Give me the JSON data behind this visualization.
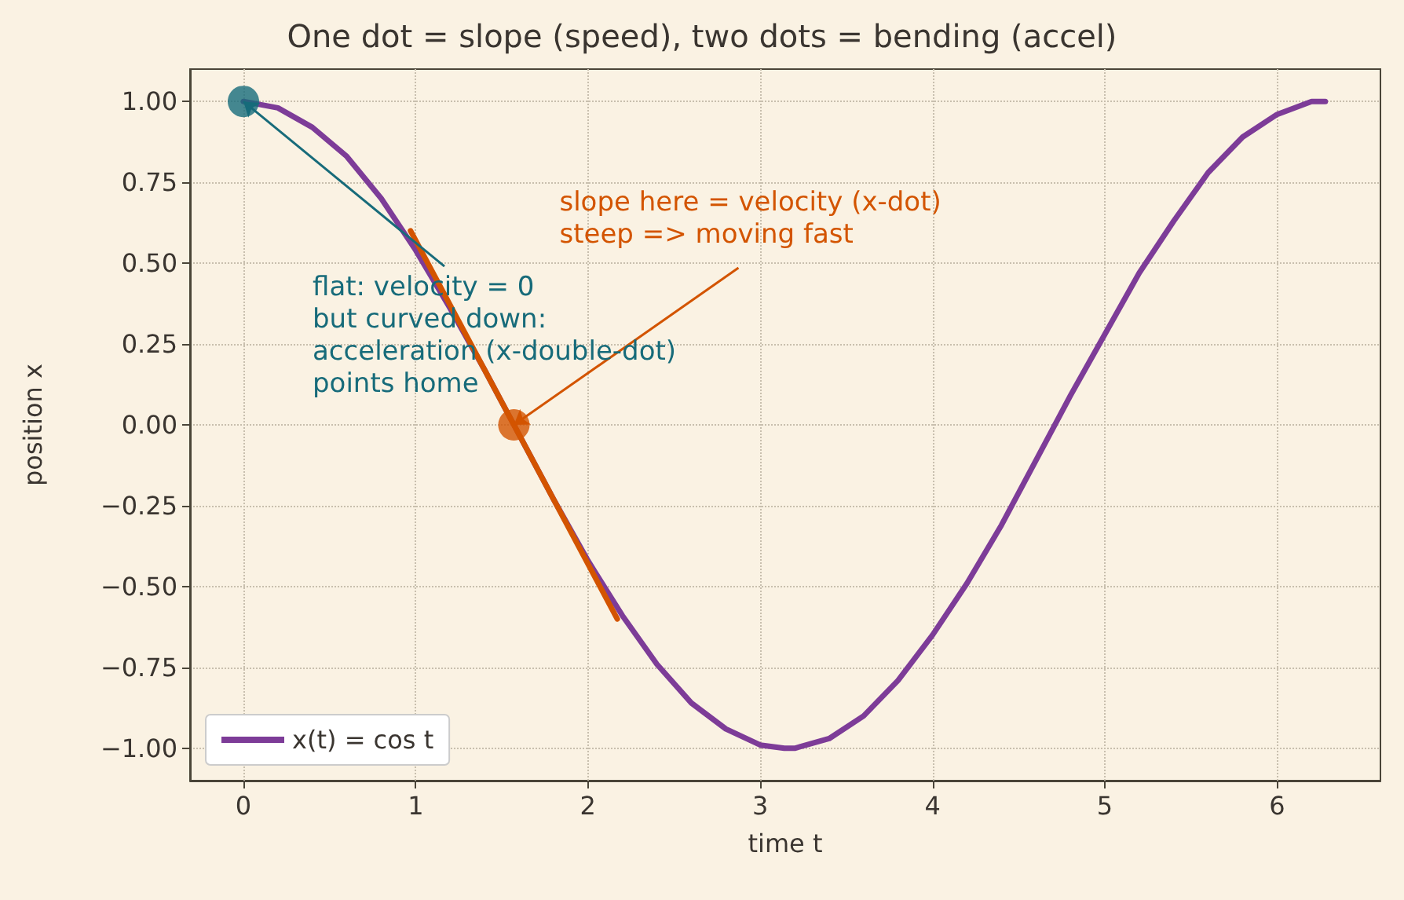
{
  "chart_data": {
    "type": "line",
    "title": "One dot = slope (speed), two dots = bending (accel)",
    "xlabel": "time t",
    "ylabel": "position x",
    "xlim": [
      -0.31,
      6.6
    ],
    "xticks": [
      0,
      1,
      2,
      3,
      4,
      5,
      6
    ],
    "ylim": [
      -1.1,
      1.1
    ],
    "yticks": [
      {
        "value": -1,
        "label": "−1.00"
      },
      {
        "value": -0.75,
        "label": "−0.75"
      },
      {
        "value": -0.5,
        "label": "−0.50"
      },
      {
        "value": -0.25,
        "label": "−0.25"
      },
      {
        "value": 0,
        "label": "0.00"
      },
      {
        "value": 0.25,
        "label": "0.25"
      },
      {
        "value": 0.5,
        "label": "0.50"
      },
      {
        "value": 0.75,
        "label": "0.75"
      },
      {
        "value": 1,
        "label": "1.00"
      }
    ],
    "grid": true,
    "legend": "bottom left",
    "marker": "none",
    "line_style": "solid",
    "series": [
      {
        "name": "x(t) = cos t",
        "type": "line",
        "color": "#7d3c98",
        "x": [
          0,
          0.2,
          0.4,
          0.6,
          0.8,
          1.0,
          1.2,
          1.4,
          1.6,
          1.8,
          2.0,
          2.2,
          2.4,
          2.6,
          2.8,
          3.0,
          3.14,
          3.2,
          3.4,
          3.6,
          3.8,
          4.0,
          4.2,
          4.4,
          4.6,
          4.8,
          5.0,
          5.2,
          5.4,
          5.6,
          5.8,
          6.0,
          6.2,
          6.28
        ],
        "values": [
          1,
          0.98,
          0.92,
          0.83,
          0.7,
          0.54,
          0.36,
          0.17,
          -0.03,
          -0.23,
          -0.42,
          -0.59,
          -0.74,
          -0.86,
          -0.94,
          -0.99,
          -1,
          -1,
          -0.97,
          -0.9,
          -0.79,
          -0.65,
          -0.49,
          -0.31,
          -0.11,
          0.09,
          0.28,
          0.47,
          0.63,
          0.78,
          0.89,
          0.96,
          1,
          1
        ]
      },
      {
        "type": "line",
        "color": "#d35400",
        "x": [
          0.97,
          2.17
        ],
        "values": [
          0.6,
          -0.6
        ]
      },
      {
        "type": "scatter",
        "color": "#d35400",
        "marker": "circle",
        "x": [
          1.57
        ],
        "values": [
          0
        ]
      },
      {
        "type": "scatter",
        "color": "#176b7a",
        "marker": "circle",
        "x": [
          0
        ],
        "values": [
          1
        ]
      }
    ],
    "annotations": [
      {
        "text": "slope here = velocity (x-dot)\nsteep => moving fast",
        "x": 1.57,
        "y": 0
      },
      {
        "text": "flat: velocity = 0\nbut curved down:\nacceleration (x-double-dot)\npoints home",
        "x": 0,
        "y": 1
      }
    ]
  }
}
